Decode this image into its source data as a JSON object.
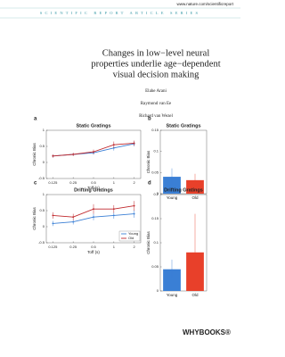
{
  "header": {
    "url": "www.nature.com/scientificreport",
    "series": "SCIENTIFIC REPORT ARTICLE SERIES"
  },
  "title": [
    "Changes in low−level neural",
    "properties underlie age−dependent",
    "visual decision making"
  ],
  "authors": [
    "Elahe Arani",
    "Raymond van Ee",
    "Richard van Wezel"
  ],
  "publisher": "WHYBOOKS®",
  "chart_data": [
    {
      "type": "line",
      "panel": "a",
      "title": "Static Gratings",
      "y_label": "Chronic Bias",
      "x_label": "Toff (s)",
      "x": [
        0.125,
        0.25,
        0.5,
        1,
        2
      ],
      "xlim": [
        0.1,
        2.5
      ],
      "xticks": [
        0.125,
        0.25,
        0.5,
        1,
        2
      ],
      "log_x": true,
      "ylim": [
        -0.5,
        1
      ],
      "yticks": [
        -0.5,
        0,
        0.5,
        1
      ],
      "series": [
        {
          "name": "Young",
          "color": "#3a7fd5",
          "values": [
            0.2,
            0.25,
            0.3,
            0.45,
            0.58
          ],
          "errors": [
            0.05,
            0.05,
            0.06,
            0.08,
            0.08
          ]
        },
        {
          "name": "Old",
          "color": "#c0282c",
          "values": [
            0.2,
            0.25,
            0.33,
            0.55,
            0.6
          ],
          "errors": [
            0.05,
            0.05,
            0.07,
            0.1,
            0.08
          ]
        }
      ]
    },
    {
      "type": "bar",
      "panel": "b",
      "title": "Static Gratings",
      "y_label": "Chronic Bias",
      "categories": [
        "Young",
        "Old"
      ],
      "values": [
        0.04,
        0.032
      ],
      "errors": [
        0.02,
        0.015
      ],
      "colors": [
        "#3a7fd5",
        "#e8402a"
      ],
      "ylim": [
        0,
        0.15
      ],
      "yticks": [
        0,
        0.05,
        0.1,
        0.15
      ]
    },
    {
      "type": "line",
      "panel": "c",
      "title": "Drifting Gratings",
      "y_label": "Chronic Bias",
      "x_label": "Toff (s)",
      "x": [
        0.125,
        0.25,
        0.5,
        1,
        2
      ],
      "xlim": [
        0.1,
        2.5
      ],
      "xticks": [
        0.125,
        0.25,
        0.5,
        1,
        2
      ],
      "log_x": true,
      "ylim": [
        -0.5,
        1
      ],
      "yticks": [
        -0.5,
        0,
        0.5,
        1
      ],
      "legend": "lower right",
      "series": [
        {
          "name": "Young",
          "color": "#3a7fd5",
          "values": [
            0.1,
            0.15,
            0.3,
            0.35,
            0.4
          ],
          "errors": [
            0.08,
            0.08,
            0.1,
            0.1,
            0.12
          ]
        },
        {
          "name": "Old",
          "color": "#c0282c",
          "values": [
            0.35,
            0.3,
            0.55,
            0.55,
            0.65
          ],
          "errors": [
            0.1,
            0.1,
            0.15,
            0.12,
            0.15
          ]
        }
      ]
    },
    {
      "type": "bar",
      "panel": "d",
      "title": "Drifting Gratings",
      "y_label": "Chronic Bias",
      "categories": [
        "Young",
        "Old"
      ],
      "values": [
        0.045,
        0.08
      ],
      "errors": [
        0.02,
        0.08
      ],
      "colors": [
        "#3a7fd5",
        "#e8402a"
      ],
      "ylim": [
        0,
        0.2
      ],
      "yticks": [
        0,
        0.05,
        0.1,
        0.15,
        0.2
      ]
    }
  ]
}
